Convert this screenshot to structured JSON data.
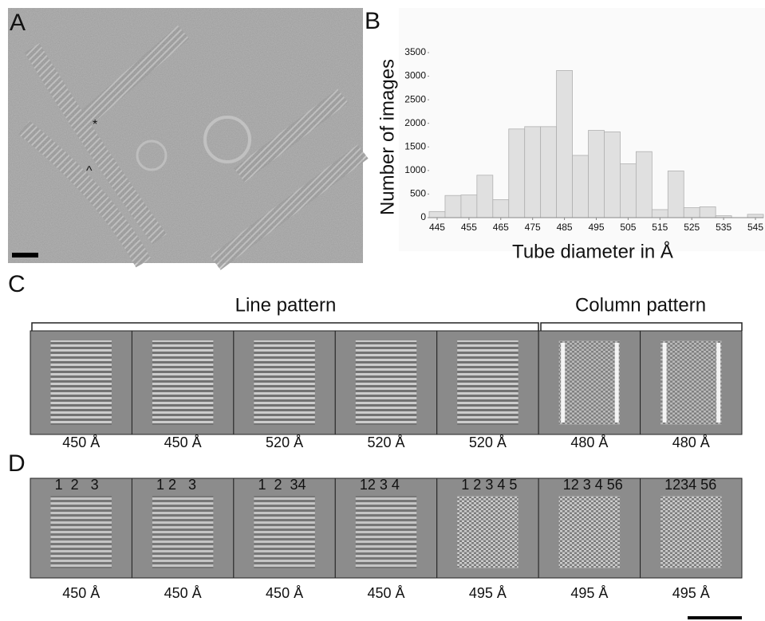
{
  "panels": {
    "a": {
      "label": "A",
      "annotations": [
        "*",
        "^"
      ]
    },
    "b": {
      "label": "B"
    },
    "c": {
      "label": "C",
      "groups": [
        {
          "title": "Line pattern"
        },
        {
          "title": "Column pattern"
        }
      ],
      "images": [
        {
          "caption": "450 Å"
        },
        {
          "caption": "450 Å"
        },
        {
          "caption": "520 Å"
        },
        {
          "caption": "520 Å"
        },
        {
          "caption": "520 Å"
        },
        {
          "caption": "480 Å"
        },
        {
          "caption": "480 Å"
        }
      ]
    },
    "d": {
      "label": "D",
      "images": [
        {
          "numbers": "1  2   3",
          "caption": "450 Å"
        },
        {
          "numbers": "1 2   3",
          "caption": "450 Å"
        },
        {
          "numbers": "1  2  34",
          "caption": "450 Å"
        },
        {
          "numbers": "12 3 4",
          "caption": "450 Å"
        },
        {
          "numbers": "1 2 3 4 5",
          "caption": "495 Å"
        },
        {
          "numbers": "12 3 4 56",
          "caption": "495 Å"
        },
        {
          "numbers": "1234 56",
          "caption": "495 Å"
        }
      ]
    }
  },
  "chart_data": {
    "type": "histogram",
    "xlabel": "Tube diameter in Å",
    "ylabel": "Number of images",
    "bins": [
      442.5,
      447.5,
      452.5,
      457.5,
      462.5,
      467.5,
      472.5,
      477.5,
      482.5,
      487.5,
      492.5,
      497.5,
      502.5,
      507.5,
      512.5,
      517.5,
      522.5,
      527.5,
      532.5,
      537.5,
      542.5,
      547.5
    ],
    "values": [
      130,
      470,
      480,
      900,
      380,
      1880,
      1930,
      1930,
      3120,
      1320,
      1850,
      1820,
      1140,
      1400,
      170,
      990,
      210,
      230,
      40,
      0,
      70
    ],
    "color": "#e0e0e0",
    "xlim": [
      442.5,
      547.5
    ],
    "ylim": [
      0,
      3500
    ],
    "xticks": [
      445,
      455,
      465,
      475,
      485,
      495,
      505,
      515,
      525,
      535,
      545
    ],
    "yticks": [
      0,
      500,
      1000,
      1500,
      2000,
      2500,
      3000,
      3500
    ]
  }
}
